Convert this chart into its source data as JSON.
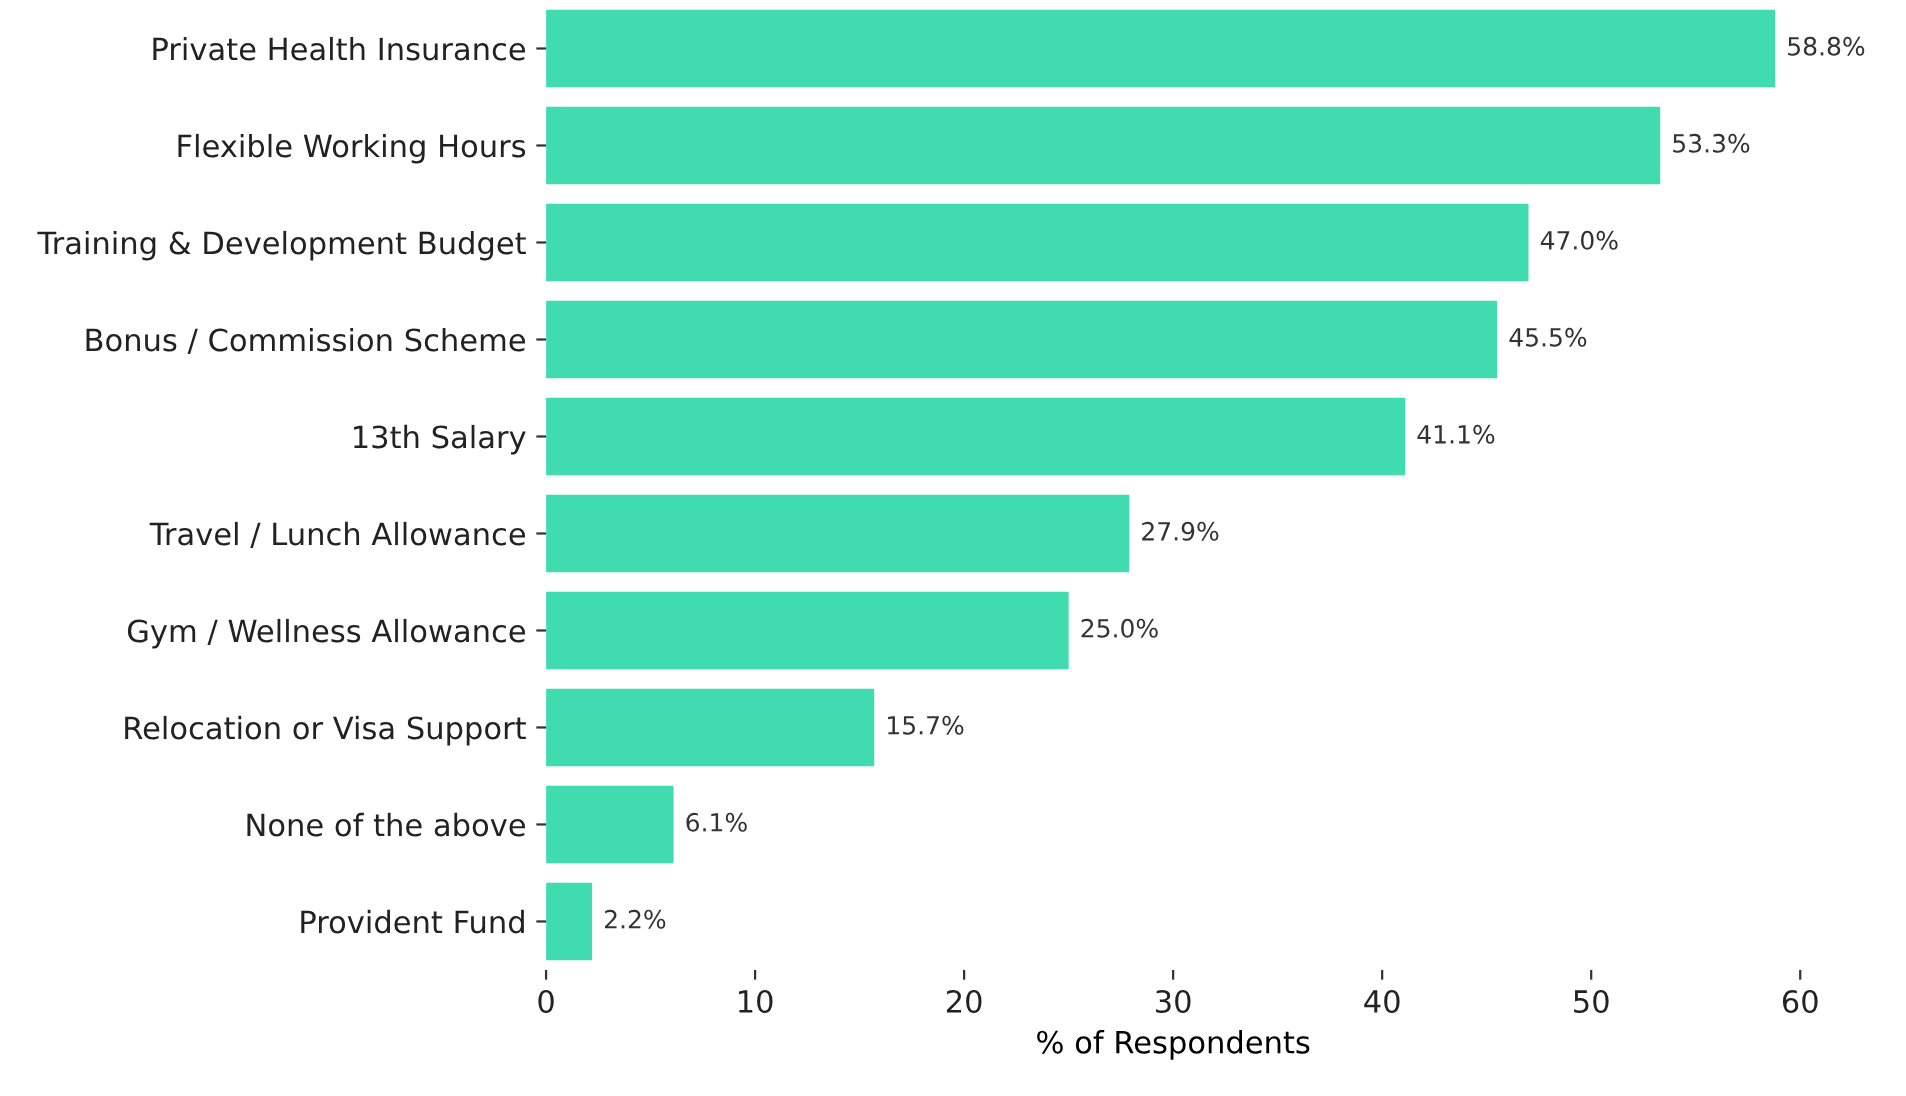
{
  "chart_data": {
    "type": "bar",
    "orientation": "horizontal",
    "xlabel": "% of Respondents",
    "categories": [
      "Private Health Insurance",
      "Flexible Working Hours",
      "Training & Development Budget",
      "Bonus / Commission Scheme",
      "13th Salary",
      "Travel / Lunch Allowance",
      "Gym / Wellness Allowance",
      "Relocation or Visa Support",
      "None of the above",
      "Provident Fund"
    ],
    "values": [
      58.8,
      53.3,
      47.0,
      45.5,
      41.1,
      27.9,
      25.0,
      15.7,
      6.1,
      2.2
    ],
    "value_labels": [
      "58.8%",
      "53.3%",
      "47.0%",
      "45.5%",
      "41.1%",
      "27.9%",
      "25.0%",
      "15.7%",
      "6.1%",
      "2.2%"
    ],
    "color": "#41dbb0",
    "xlim": [
      0,
      60
    ],
    "xticks": [
      0,
      10,
      20,
      30,
      40,
      50,
      60
    ],
    "grid": false
  }
}
